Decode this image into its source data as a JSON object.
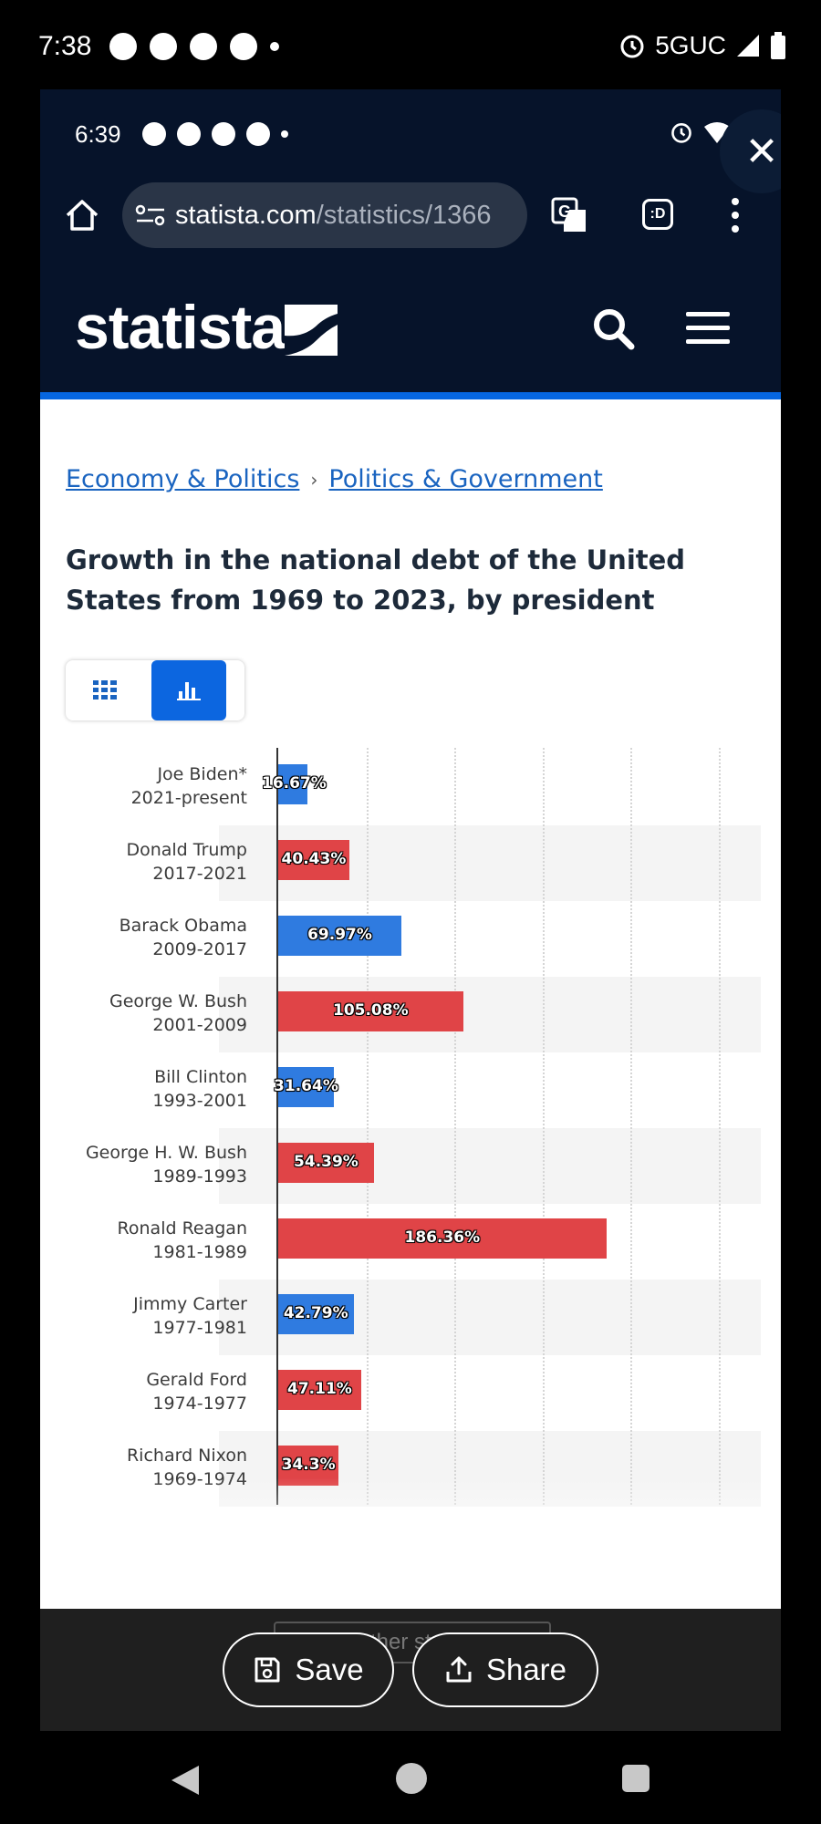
{
  "status_bar": {
    "time": "7:38",
    "network": "5GUC"
  },
  "inner_status_bar": {
    "time": "6:39"
  },
  "browser": {
    "url_host": "statista.com",
    "url_path": "/statistics/1366",
    "close_label": "✕"
  },
  "site": {
    "brand": "statista",
    "nav_icons": [
      "search-icon",
      "menu-icon"
    ]
  },
  "breadcrumb": {
    "item1": "Economy & Politics",
    "separator": "›",
    "item2": "Politics & Government"
  },
  "page_title": "Growth in the national debt of the United States from 1969 to 2023, by president",
  "view_toggle": {
    "options": [
      "table-view-icon",
      "chart-view-icon"
    ],
    "selected": "chart-view-icon"
  },
  "colors": {
    "democrat": "#2f7be0",
    "republican": "#e04447",
    "accent": "#0666e0",
    "header": "#06132a"
  },
  "chart_data": {
    "type": "bar",
    "orientation": "horizontal",
    "categories": [
      {
        "name": "Joe Biden*",
        "term": "2021-present"
      },
      {
        "name": "Donald Trump",
        "term": "2017-2021"
      },
      {
        "name": "Barack Obama",
        "term": "2009-2017"
      },
      {
        "name": "George W. Bush",
        "term": "2001-2009"
      },
      {
        "name": "Bill Clinton",
        "term": "1993-2001"
      },
      {
        "name": "George H. W. Bush",
        "term": "1989-1993"
      },
      {
        "name": "Ronald Reagan",
        "term": "1981-1989"
      },
      {
        "name": "Jimmy Carter",
        "term": "1977-1981"
      },
      {
        "name": "Gerald Ford",
        "term": "1974-1977"
      },
      {
        "name": "Richard Nixon",
        "term": "1969-1974"
      }
    ],
    "values": [
      16.67,
      40.43,
      69.97,
      105.08,
      31.64,
      54.39,
      186.36,
      42.79,
      47.11,
      34.3
    ],
    "value_labels": [
      "16.67%",
      "40.43%",
      "69.97%",
      "105.08%",
      "31.64%",
      "54.39%",
      "186.36%",
      "42.79%",
      "47.11%",
      "34.3%"
    ],
    "party": [
      "democrat",
      "republican",
      "democrat",
      "republican",
      "democrat",
      "republican",
      "republican",
      "democrat",
      "republican",
      "republican"
    ],
    "xlim": [
      0,
      250
    ],
    "grid": true,
    "title": "",
    "xlabel": "",
    "ylabel": ""
  },
  "actions": {
    "behind_button": "Further statistic",
    "save": "Save",
    "share": "Share"
  }
}
